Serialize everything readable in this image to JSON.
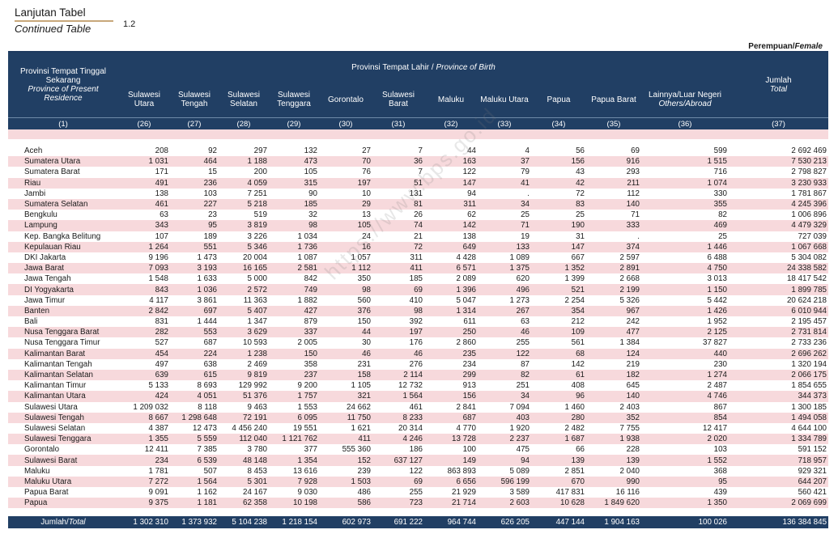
{
  "header": {
    "title": "Lanjutan Tabel",
    "subtitle": "Continued Table",
    "table_number": "1.2",
    "gender_id": "Perempuan/",
    "gender_en": "Female"
  },
  "columns": {
    "province_present_id": "Provinsi Tempat Tinggal Sekarang",
    "province_present_en": "Province of Present Residence",
    "birth_id": "Provinsi Tempat Lahir / ",
    "birth_en": "Province of Birth",
    "total_id": "Jumlah",
    "total_en": "Total",
    "sub": [
      "Sulawesi Utara",
      "Sulawesi Tengah",
      "Sulawesi Selatan",
      "Sulawesi Tenggara",
      "Gorontalo",
      "Sulawesi Barat",
      "Maluku",
      "Maluku Utara",
      "Papua",
      "Papua Barat"
    ],
    "abroad_id": "Lainnya/Luar Negeri",
    "abroad_en": "Others/Abroad",
    "indices": [
      "(1)",
      "(26)",
      "(27)",
      "(28)",
      "(29)",
      "(30)",
      "(31)",
      "(32)",
      "(33)",
      "(34)",
      "(35)",
      "(36)",
      "(37)"
    ]
  },
  "rows": [
    {
      "name": "Aceh",
      "v": [
        "208",
        "92",
        "297",
        "132",
        "27",
        "7",
        "44",
        "4",
        "56",
        "69",
        "599",
        "2 692 469"
      ]
    },
    {
      "name": "Sumatera Utara",
      "v": [
        "1 031",
        "464",
        "1 188",
        "473",
        "70",
        "36",
        "163",
        "37",
        "156",
        "916",
        "1 515",
        "7 530 213"
      ]
    },
    {
      "name": "Sumatera Barat",
      "v": [
        "171",
        "15",
        "200",
        "105",
        "76",
        "7",
        "122",
        "79",
        "43",
        "293",
        "716",
        "2 798 827"
      ]
    },
    {
      "name": "Riau",
      "v": [
        "491",
        "236",
        "4 059",
        "315",
        "197",
        "51",
        "147",
        "41",
        "42",
        "211",
        "1 074",
        "3 230 933"
      ]
    },
    {
      "name": "Jambi",
      "v": [
        "138",
        "103",
        "7 251",
        "90",
        "10",
        "131",
        "94",
        ".",
        "72",
        "112",
        "330",
        "1 781 867"
      ]
    },
    {
      "name": "Sumatera Selatan",
      "v": [
        "461",
        "227",
        "5 218",
        "185",
        "29",
        "81",
        "311",
        "34",
        "83",
        "140",
        "355",
        "4 245 396"
      ]
    },
    {
      "name": "Bengkulu",
      "v": [
        "63",
        "23",
        "519",
        "32",
        "13",
        "26",
        "62",
        "25",
        "25",
        "71",
        "82",
        "1 006 896"
      ]
    },
    {
      "name": "Lampung",
      "v": [
        "343",
        "95",
        "3 819",
        "98",
        "105",
        "74",
        "142",
        "71",
        "190",
        "333",
        "469",
        "4 479 329"
      ]
    },
    {
      "name": "Kep. Bangka Belitung",
      "v": [
        "107",
        "189",
        "3 226",
        "1 034",
        "24",
        "21",
        "138",
        "19",
        "31",
        ".",
        "25",
        "727 039"
      ]
    },
    {
      "name": "Kepulauan Riau",
      "v": [
        "1 264",
        "551",
        "5 346",
        "1 736",
        "16",
        "72",
        "649",
        "133",
        "147",
        "374",
        "1 446",
        "1 067 668"
      ]
    },
    {
      "name": "DKI Jakarta",
      "v": [
        "9 196",
        "1 473",
        "20 004",
        "1 087",
        "1 057",
        "311",
        "4 428",
        "1 089",
        "667",
        "2 597",
        "6 488",
        "5 304 082"
      ]
    },
    {
      "name": "Jawa Barat",
      "v": [
        "7 093",
        "3 193",
        "16 165",
        "2 581",
        "1 112",
        "411",
        "6 571",
        "1 375",
        "1 352",
        "2 891",
        "4 750",
        "24 338 582"
      ]
    },
    {
      "name": "Jawa Tengah",
      "v": [
        "1 548",
        "1 633",
        "5 000",
        "842",
        "350",
        "185",
        "2 089",
        "620",
        "1 399",
        "2 668",
        "3 013",
        "18 417 542"
      ]
    },
    {
      "name": "DI Yogyakarta",
      "v": [
        "843",
        "1 036",
        "2 572",
        "749",
        "98",
        "69",
        "1 396",
        "496",
        "521",
        "2 199",
        "1 150",
        "1 899 785"
      ]
    },
    {
      "name": "Jawa Timur",
      "v": [
        "4 117",
        "3 861",
        "11 363",
        "1 882",
        "560",
        "410",
        "5 047",
        "1 273",
        "2 254",
        "5 326",
        "5 442",
        "20 624 218"
      ]
    },
    {
      "name": "Banten",
      "v": [
        "2 842",
        "697",
        "5 407",
        "427",
        "376",
        "98",
        "1 314",
        "267",
        "354",
        "967",
        "1 426",
        "6 010 944"
      ]
    },
    {
      "name": "Bali",
      "v": [
        "831",
        "1 444",
        "1 347",
        "879",
        "150",
        "392",
        "611",
        "63",
        "212",
        "242",
        "1 952",
        "2 195 457"
      ]
    },
    {
      "name": "Nusa Tenggara Barat",
      "v": [
        "282",
        "553",
        "3 629",
        "337",
        "44",
        "197",
        "250",
        "46",
        "109",
        "477",
        "2 125",
        "2 731 814"
      ]
    },
    {
      "name": "Nusa Tenggara Timur",
      "v": [
        "527",
        "687",
        "10 593",
        "2 005",
        "30",
        "176",
        "2 860",
        "255",
        "561",
        "1 384",
        "37 827",
        "2 733 236"
      ]
    },
    {
      "name": "Kalimantan Barat",
      "v": [
        "454",
        "224",
        "1 238",
        "150",
        "46",
        "46",
        "235",
        "122",
        "68",
        "124",
        "440",
        "2 696 262"
      ]
    },
    {
      "name": "Kalimantan Tengah",
      "v": [
        "497",
        "638",
        "2 469",
        "358",
        "231",
        "276",
        "234",
        "87",
        "142",
        "219",
        "230",
        "1 320 194"
      ]
    },
    {
      "name": "Kalimantan Selatan",
      "v": [
        "639",
        "615",
        "9 819",
        "237",
        "158",
        "2 114",
        "299",
        "82",
        "61",
        "182",
        "1 274",
        "2 066 175"
      ]
    },
    {
      "name": "Kalimantan Timur",
      "v": [
        "5 133",
        "8 693",
        "129 992",
        "9 200",
        "1 105",
        "12 732",
        "913",
        "251",
        "408",
        "645",
        "2 487",
        "1 854 655"
      ]
    },
    {
      "name": "Kalimantan Utara",
      "v": [
        "424",
        "4 051",
        "51 376",
        "1 757",
        "321",
        "1 564",
        "156",
        "34",
        "96",
        "140",
        "4 746",
        "344 373"
      ]
    },
    {
      "name": "Sulawesi Utara",
      "v": [
        "1 209 032",
        "8 118",
        "9 463",
        "1 553",
        "24 662",
        "461",
        "2 841",
        "7 094",
        "1 460",
        "2 403",
        "867",
        "1 300 185"
      ]
    },
    {
      "name": "Sulawesi Tengah",
      "v": [
        "8 667",
        "1 298 648",
        "72 191",
        "6 095",
        "11 750",
        "8 233",
        "687",
        "403",
        "280",
        "352",
        "854",
        "1 494 058"
      ]
    },
    {
      "name": "Sulawesi Selatan",
      "v": [
        "4 387",
        "12 473",
        "4 456 240",
        "19 551",
        "1 621",
        "20 314",
        "4 770",
        "1 920",
        "2 482",
        "7 755",
        "12 417",
        "4 644 100"
      ]
    },
    {
      "name": "Sulawesi Tenggara",
      "v": [
        "1 355",
        "5 559",
        "112 040",
        "1 121 762",
        "411",
        "4 246",
        "13 728",
        "2 237",
        "1 687",
        "1 938",
        "2 020",
        "1 334 789"
      ]
    },
    {
      "name": "Gorontalo",
      "v": [
        "12 411",
        "7 385",
        "3 780",
        "377",
        "555 360",
        "186",
        "100",
        "475",
        "66",
        "228",
        "103",
        "591 152"
      ]
    },
    {
      "name": "Sulawesi Barat",
      "v": [
        "234",
        "6 539",
        "48 148",
        "1 354",
        "152",
        "637 127",
        "149",
        "94",
        "139",
        "139",
        "1 552",
        "718 957"
      ]
    },
    {
      "name": "Maluku",
      "v": [
        "1 781",
        "507",
        "8 453",
        "13 616",
        "239",
        "122",
        "863 893",
        "5 089",
        "2 851",
        "2 040",
        "368",
        "929 321"
      ]
    },
    {
      "name": "Maluku Utara",
      "v": [
        "7 272",
        "1 564",
        "5 301",
        "7 928",
        "1 503",
        "69",
        "6 656",
        "596 199",
        "670",
        "990",
        "95",
        "644 207"
      ]
    },
    {
      "name": "Papua Barat",
      "v": [
        "9 091",
        "1 162",
        "24 167",
        "9 030",
        "486",
        "255",
        "21 929",
        "3 589",
        "417 831",
        "16 116",
        "439",
        "560 421"
      ]
    },
    {
      "name": "Papua",
      "v": [
        "9 375",
        "1 181",
        "62 358",
        "10 198",
        "586",
        "723",
        "21 714",
        "2 603",
        "10 628",
        "1 849 620",
        "1 350",
        "2 069 699"
      ]
    }
  ],
  "total": {
    "label_id": "Jumlah/",
    "label_en": "Total",
    "v": [
      "1 302 310",
      "1 373 932",
      "5 104 238",
      "1 218 154",
      "602 973",
      "691 222",
      "964 744",
      "626 205",
      "447 144",
      "1 904 163",
      "100 026",
      "136 384 845"
    ]
  },
  "watermark": "https://www.bps.go.id"
}
